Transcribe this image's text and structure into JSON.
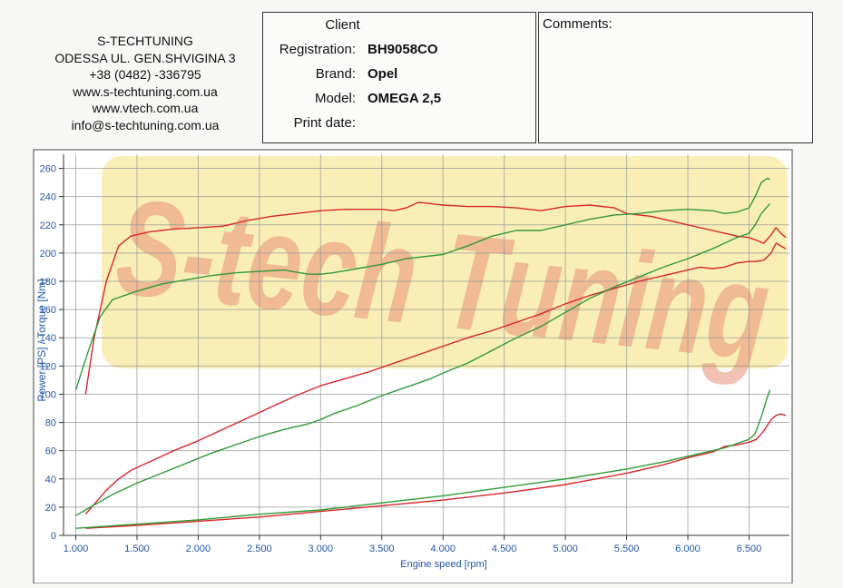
{
  "company": {
    "name": "S-TECHTUNING",
    "address": "ODESSA UL. GEN.SHVIGINA 3",
    "phone": "+38 (0482) -336795",
    "web1": "www.s-techtuning.com.ua",
    "web2": "www.vtech.com.ua",
    "email": "info@s-techtuning.com.ua"
  },
  "client": {
    "title": "Client",
    "registration_label": "Registration:",
    "registration": "BH9058CO",
    "brand_label": "Brand:",
    "brand": "Opel",
    "model_label": "Model:",
    "model": "OMEGA 2,5",
    "print_date_label": "Print date:",
    "print_date": ""
  },
  "comments": {
    "title": "Comments:"
  },
  "watermark": "S-tech Tuning",
  "colors": {
    "axis_text": "#2255a8",
    "red": "#d8262a",
    "green": "#2f9a36",
    "grid": "#9a9a9a",
    "watermark": "#e8907a"
  },
  "chart_data": {
    "type": "line",
    "xlabel": "Engine speed [rpm]",
    "ylabel": "Power [PS] / Torque [Nm]",
    "xlim": [
      900,
      6830
    ],
    "ylim": [
      0,
      270
    ],
    "xticks": [
      1000,
      1500,
      2000,
      2500,
      3000,
      3500,
      4000,
      4500,
      5000,
      5500,
      6000,
      6500
    ],
    "xtick_labels": [
      "1.000",
      "1.500",
      "2.000",
      "2.500",
      "3.000",
      "3.500",
      "4.000",
      "4.500",
      "5.000",
      "5.500",
      "6.000",
      "6.500"
    ],
    "yticks": [
      0,
      20,
      40,
      60,
      80,
      100,
      120,
      140,
      160,
      180,
      200,
      220,
      240,
      260
    ],
    "grid": true,
    "series": [
      {
        "color": "red",
        "x": [
          1080,
          1150,
          1250,
          1350,
          1450,
          1600,
          1800,
          2000,
          2200,
          2400,
          2600,
          2800,
          3000,
          3200,
          3400,
          3500,
          3600,
          3700,
          3800,
          3900,
          4000,
          4200,
          4400,
          4600,
          4800,
          5000,
          5200,
          5400,
          5500,
          5600,
          5700,
          5800,
          5900,
          6000,
          6100,
          6200,
          6300,
          6400,
          6500,
          6560,
          6620,
          6680,
          6720,
          6760,
          6800
        ],
        "y": [
          100,
          140,
          180,
          205,
          212,
          215,
          217,
          218,
          219,
          223,
          226,
          228,
          230,
          231,
          231,
          231,
          230,
          232,
          236,
          235,
          234,
          233,
          233,
          232,
          230,
          233,
          234,
          232,
          228,
          227,
          226,
          224,
          222,
          220,
          218,
          216,
          214,
          212,
          211,
          209,
          207,
          213,
          218,
          214,
          211
        ]
      },
      {
        "color": "green",
        "x": [
          1000,
          1100,
          1200,
          1300,
          1400,
          1500,
          1700,
          1900,
          2100,
          2300,
          2500,
          2700,
          2900,
          3000,
          3100,
          3300,
          3500,
          3700,
          3900,
          4000,
          4200,
          4400,
          4600,
          4800,
          5000,
          5200,
          5400,
          5600,
          5800,
          6000,
          6200,
          6300,
          6400,
          6500,
          6550,
          6600,
          6650,
          6670
        ],
        "y": [
          103,
          130,
          155,
          167,
          170,
          173,
          178,
          181,
          184,
          186,
          187,
          188,
          185,
          185,
          186,
          189,
          192,
          196,
          198,
          199,
          205,
          212,
          216,
          216,
          220,
          224,
          227,
          228,
          230,
          231,
          230,
          228,
          229,
          232,
          240,
          250,
          253,
          252
        ]
      },
      {
        "color": "red",
        "x": [
          1080,
          1150,
          1250,
          1350,
          1450,
          1600,
          1800,
          2000,
          2200,
          2400,
          2600,
          2800,
          3000,
          3200,
          3400,
          3600,
          3800,
          4000,
          4200,
          4400,
          4600,
          4800,
          5000,
          5200,
          5400,
          5600,
          5800,
          6000,
          6100,
          6200,
          6300,
          6400,
          6500,
          6560,
          6620,
          6680,
          6720,
          6760,
          6800
        ],
        "y": [
          15,
          22,
          32,
          40,
          46,
          52,
          60,
          67,
          75,
          83,
          91,
          99,
          106,
          111,
          116,
          122,
          128,
          134,
          140,
          145,
          151,
          157,
          164,
          170,
          175,
          180,
          184,
          188,
          190,
          189,
          190,
          193,
          194,
          194,
          195,
          200,
          207,
          205,
          203
        ]
      },
      {
        "color": "green",
        "x": [
          1000,
          1100,
          1200,
          1300,
          1400,
          1500,
          1700,
          1900,
          2100,
          2300,
          2500,
          2700,
          2900,
          3000,
          3100,
          3300,
          3500,
          3700,
          3900,
          4000,
          4200,
          4400,
          4600,
          4800,
          5000,
          5200,
          5400,
          5600,
          5800,
          6000,
          6200,
          6300,
          6400,
          6500,
          6550,
          6600,
          6650,
          6670
        ],
        "y": [
          14,
          19,
          24,
          29,
          33,
          37,
          44,
          51,
          58,
          64,
          70,
          75,
          79,
          82,
          86,
          92,
          99,
          105,
          111,
          115,
          122,
          131,
          140,
          148,
          158,
          168,
          176,
          183,
          190,
          196,
          203,
          207,
          211,
          214,
          220,
          228,
          233,
          235
        ]
      },
      {
        "color": "red",
        "x": [
          1080,
          1500,
          2000,
          2500,
          3000,
          3500,
          4000,
          4500,
          5000,
          5500,
          5800,
          6000,
          6200,
          6300,
          6400,
          6500,
          6560,
          6620,
          6680,
          6720,
          6760,
          6800
        ],
        "y": [
          5,
          7,
          10,
          13,
          17,
          21,
          25,
          30,
          36,
          44,
          50,
          55,
          59,
          63,
          64,
          66,
          68,
          74,
          82,
          85,
          86,
          85
        ]
      },
      {
        "color": "green",
        "x": [
          1000,
          1500,
          2000,
          2500,
          3000,
          3500,
          4000,
          4500,
          5000,
          5500,
          5800,
          6000,
          6200,
          6300,
          6400,
          6500,
          6550,
          6600,
          6650,
          6670
        ],
        "y": [
          5,
          8,
          11,
          15,
          18,
          23,
          28,
          34,
          40,
          47,
          52,
          56,
          60,
          62,
          65,
          68,
          72,
          84,
          98,
          103
        ]
      }
    ]
  }
}
